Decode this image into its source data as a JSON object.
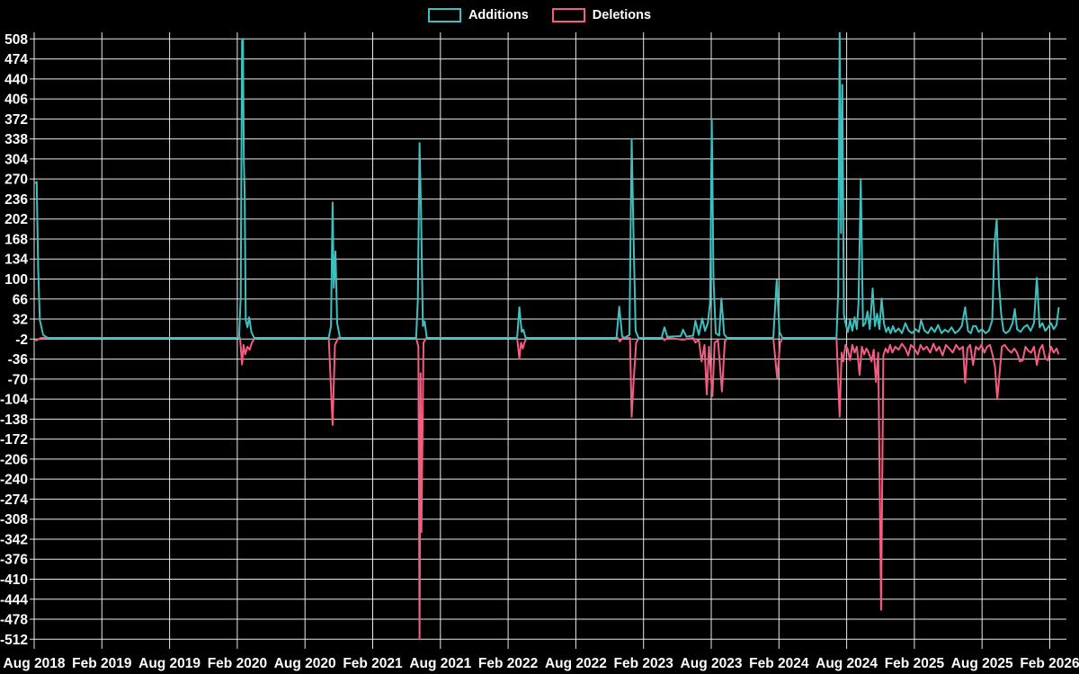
{
  "chart_data": {
    "type": "line",
    "title": "",
    "background": "#000000",
    "grid_color": "#e9e9e9",
    "text_color": "#ffffff",
    "legend_position": "top-center",
    "x_axis": {
      "unit": "months since Aug 2018",
      "months_per_gridline": 6,
      "tick_labels": [
        "Aug 2018",
        "Feb 2019",
        "Aug 2019",
        "Feb 2020",
        "Aug 2020",
        "Feb 2021",
        "Aug 2021",
        "Feb 2022",
        "Aug 2022",
        "Feb 2023",
        "Aug 2023",
        "Feb 2024",
        "Aug 2024",
        "Feb 2025",
        "Aug 2025",
        "Feb 2026"
      ]
    },
    "y_axis": {
      "max": 508,
      "min": -512,
      "step": 34,
      "tick_labels": [
        508,
        474,
        440,
        406,
        372,
        338,
        304,
        270,
        236,
        202,
        168,
        134,
        100,
        66,
        32,
        -2,
        -36,
        -70,
        -104,
        -138,
        -172,
        -206,
        -240,
        -274,
        -308,
        -342,
        -376,
        -410,
        -444,
        -478,
        -512
      ]
    },
    "series": [
      {
        "name": "Additions",
        "color": "#3fc0c0",
        "points": [
          [
            0.1,
            262
          ],
          [
            0.22,
            265
          ],
          [
            0.35,
            120
          ],
          [
            0.5,
            30
          ],
          [
            0.8,
            5
          ],
          [
            1.2,
            0
          ],
          [
            17.6,
            0
          ],
          [
            18.15,
            0
          ],
          [
            18.3,
            68
          ],
          [
            18.42,
            505
          ],
          [
            18.5,
            508
          ],
          [
            18.58,
            300
          ],
          [
            18.65,
            245
          ],
          [
            18.75,
            30
          ],
          [
            18.9,
            18
          ],
          [
            19.05,
            35
          ],
          [
            19.25,
            10
          ],
          [
            19.5,
            0
          ],
          [
            26.1,
            0
          ],
          [
            26.3,
            20
          ],
          [
            26.45,
            230
          ],
          [
            26.55,
            85
          ],
          [
            26.7,
            147
          ],
          [
            26.85,
            25
          ],
          [
            27.1,
            0
          ],
          [
            33.85,
            0
          ],
          [
            34.0,
            65
          ],
          [
            34.15,
            331
          ],
          [
            34.28,
            218
          ],
          [
            34.45,
            20
          ],
          [
            34.6,
            28
          ],
          [
            34.8,
            0
          ],
          [
            42.8,
            0
          ],
          [
            43.0,
            52
          ],
          [
            43.2,
            10
          ],
          [
            43.35,
            14
          ],
          [
            43.55,
            0
          ],
          [
            51.6,
            0
          ],
          [
            51.85,
            53
          ],
          [
            52.1,
            3
          ],
          [
            52.3,
            0
          ],
          [
            52.75,
            5
          ],
          [
            52.95,
            338
          ],
          [
            53.1,
            186
          ],
          [
            53.3,
            12
          ],
          [
            53.55,
            0
          ],
          [
            55.6,
            0
          ],
          [
            55.85,
            18
          ],
          [
            56.1,
            2
          ],
          [
            57.3,
            3
          ],
          [
            57.5,
            14
          ],
          [
            57.8,
            2
          ],
          [
            58.4,
            4
          ],
          [
            58.6,
            29
          ],
          [
            58.9,
            5
          ],
          [
            59.2,
            33
          ],
          [
            59.45,
            12
          ],
          [
            59.7,
            25
          ],
          [
            59.9,
            60
          ],
          [
            60.05,
            372
          ],
          [
            60.2,
            100
          ],
          [
            60.4,
            8
          ],
          [
            60.7,
            4
          ],
          [
            60.9,
            67
          ],
          [
            61.15,
            6
          ],
          [
            61.4,
            0
          ],
          [
            65.5,
            0
          ],
          [
            65.8,
            98
          ],
          [
            66.05,
            10
          ],
          [
            66.3,
            0
          ],
          [
            71.1,
            0
          ],
          [
            71.25,
            80
          ],
          [
            71.38,
            520
          ],
          [
            71.5,
            178
          ],
          [
            71.62,
            430
          ],
          [
            71.75,
            40
          ],
          [
            71.9,
            25
          ],
          [
            72.1,
            10
          ],
          [
            72.3,
            30
          ],
          [
            72.5,
            12
          ],
          [
            72.7,
            35
          ],
          [
            72.9,
            15
          ],
          [
            73.05,
            60
          ],
          [
            73.25,
            268
          ],
          [
            73.45,
            20
          ],
          [
            73.65,
            25
          ],
          [
            73.85,
            45
          ],
          [
            74.05,
            15
          ],
          [
            74.3,
            84
          ],
          [
            74.5,
            20
          ],
          [
            74.7,
            41
          ],
          [
            74.9,
            15
          ],
          [
            75.1,
            67
          ],
          [
            75.3,
            25
          ],
          [
            75.5,
            10
          ],
          [
            75.7,
            18
          ],
          [
            75.9,
            8
          ],
          [
            76.1,
            20
          ],
          [
            76.3,
            10
          ],
          [
            76.6,
            16
          ],
          [
            76.9,
            8
          ],
          [
            77.2,
            25
          ],
          [
            77.5,
            12
          ],
          [
            77.8,
            8
          ],
          [
            78.1,
            15
          ],
          [
            78.4,
            10
          ],
          [
            78.6,
            30
          ],
          [
            78.9,
            12
          ],
          [
            79.2,
            8
          ],
          [
            79.5,
            18
          ],
          [
            79.8,
            10
          ],
          [
            80.1,
            22
          ],
          [
            80.4,
            8
          ],
          [
            80.7,
            14
          ],
          [
            81.0,
            10
          ],
          [
            81.3,
            18
          ],
          [
            81.6,
            8
          ],
          [
            81.9,
            12
          ],
          [
            82.2,
            20
          ],
          [
            82.5,
            52
          ],
          [
            82.75,
            12
          ],
          [
            83.0,
            8
          ],
          [
            83.2,
            20
          ],
          [
            83.45,
            20
          ],
          [
            83.7,
            10
          ],
          [
            84.0,
            15
          ],
          [
            84.3,
            8
          ],
          [
            84.6,
            12
          ],
          [
            84.9,
            30
          ],
          [
            85.1,
            160
          ],
          [
            85.3,
            201
          ],
          [
            85.5,
            90
          ],
          [
            85.7,
            40
          ],
          [
            85.9,
            12
          ],
          [
            86.1,
            8
          ],
          [
            86.4,
            12
          ],
          [
            86.7,
            25
          ],
          [
            86.9,
            49
          ],
          [
            87.1,
            15
          ],
          [
            87.4,
            10
          ],
          [
            87.7,
            18
          ],
          [
            88.0,
            22
          ],
          [
            88.3,
            12
          ],
          [
            88.6,
            25
          ],
          [
            88.85,
            102
          ],
          [
            89.1,
            18
          ],
          [
            89.35,
            25
          ],
          [
            89.6,
            12
          ],
          [
            89.85,
            18
          ],
          [
            90.1,
            25
          ],
          [
            90.35,
            15
          ],
          [
            90.6,
            22
          ],
          [
            90.8,
            52
          ]
        ]
      },
      {
        "name": "Deletions",
        "color": "#f45c80",
        "points": [
          [
            0.1,
            -5
          ],
          [
            0.3,
            -3
          ],
          [
            0.6,
            0
          ],
          [
            17.6,
            0
          ],
          [
            18.25,
            0
          ],
          [
            18.42,
            -45
          ],
          [
            18.55,
            -12
          ],
          [
            18.7,
            -28
          ],
          [
            18.9,
            -15
          ],
          [
            19.1,
            -20
          ],
          [
            19.3,
            -8
          ],
          [
            19.55,
            0
          ],
          [
            26.1,
            0
          ],
          [
            26.45,
            -148
          ],
          [
            26.65,
            -12
          ],
          [
            26.95,
            0
          ],
          [
            33.85,
            0
          ],
          [
            34.05,
            -15
          ],
          [
            34.15,
            -512
          ],
          [
            34.25,
            -60
          ],
          [
            34.32,
            -330
          ],
          [
            34.5,
            -8
          ],
          [
            34.75,
            0
          ],
          [
            42.8,
            0
          ],
          [
            43.0,
            -35
          ],
          [
            43.15,
            -8
          ],
          [
            43.3,
            -18
          ],
          [
            43.5,
            -5
          ],
          [
            43.7,
            0
          ],
          [
            51.7,
            0
          ],
          [
            51.9,
            -6
          ],
          [
            52.15,
            0
          ],
          [
            52.8,
            0
          ],
          [
            52.95,
            -134
          ],
          [
            53.12,
            -73
          ],
          [
            53.35,
            -8
          ],
          [
            53.6,
            0
          ],
          [
            55.7,
            0
          ],
          [
            55.85,
            -4
          ],
          [
            56.1,
            0
          ],
          [
            57.5,
            -3
          ],
          [
            58.4,
            0
          ],
          [
            58.6,
            -8
          ],
          [
            58.9,
            -3
          ],
          [
            59.15,
            -40
          ],
          [
            59.4,
            -12
          ],
          [
            59.6,
            -96
          ],
          [
            59.8,
            -15
          ],
          [
            60.1,
            -99
          ],
          [
            60.3,
            -8
          ],
          [
            60.6,
            -4
          ],
          [
            60.95,
            -91
          ],
          [
            61.2,
            -6
          ],
          [
            61.45,
            0
          ],
          [
            65.5,
            0
          ],
          [
            65.85,
            -69
          ],
          [
            66.1,
            -8
          ],
          [
            66.35,
            0
          ],
          [
            71.1,
            0
          ],
          [
            71.38,
            -134
          ],
          [
            71.55,
            -25
          ],
          [
            71.7,
            -40
          ],
          [
            71.9,
            -12
          ],
          [
            72.1,
            -20
          ],
          [
            72.3,
            -38
          ],
          [
            72.5,
            -12
          ],
          [
            72.7,
            -25
          ],
          [
            72.9,
            -15
          ],
          [
            73.15,
            -63
          ],
          [
            73.35,
            -15
          ],
          [
            73.55,
            -28
          ],
          [
            73.75,
            -18
          ],
          [
            73.95,
            -25
          ],
          [
            74.2,
            -40
          ],
          [
            74.4,
            -20
          ],
          [
            74.6,
            -75
          ],
          [
            74.8,
            -25
          ],
          [
            75.05,
            -462
          ],
          [
            75.25,
            -30
          ],
          [
            75.45,
            -18
          ],
          [
            75.65,
            -25
          ],
          [
            75.85,
            -12
          ],
          [
            76.05,
            -25
          ],
          [
            76.3,
            -15
          ],
          [
            76.6,
            -20
          ],
          [
            76.9,
            -10
          ],
          [
            77.2,
            -18
          ],
          [
            77.45,
            -30
          ],
          [
            77.7,
            -12
          ],
          [
            78.0,
            -18
          ],
          [
            78.3,
            -28
          ],
          [
            78.55,
            -12
          ],
          [
            78.8,
            -20
          ],
          [
            79.1,
            -15
          ],
          [
            79.4,
            -25
          ],
          [
            79.7,
            -10
          ],
          [
            79.95,
            -22
          ],
          [
            80.2,
            -15
          ],
          [
            80.5,
            -30
          ],
          [
            80.8,
            -12
          ],
          [
            81.1,
            -18
          ],
          [
            81.4,
            -25
          ],
          [
            81.7,
            -12
          ],
          [
            82.0,
            -20
          ],
          [
            82.3,
            -15
          ],
          [
            82.5,
            -76
          ],
          [
            82.7,
            -18
          ],
          [
            82.95,
            -12
          ],
          [
            83.2,
            -46
          ],
          [
            83.45,
            -15
          ],
          [
            83.7,
            -20
          ],
          [
            83.95,
            -12
          ],
          [
            84.2,
            -25
          ],
          [
            84.45,
            -15
          ],
          [
            84.7,
            -12
          ],
          [
            84.95,
            -30
          ],
          [
            85.15,
            -50
          ],
          [
            85.35,
            -104
          ],
          [
            85.55,
            -60
          ],
          [
            85.75,
            -15
          ],
          [
            86.0,
            -12
          ],
          [
            86.3,
            -20
          ],
          [
            86.6,
            -25
          ],
          [
            86.85,
            -18
          ],
          [
            87.1,
            -25
          ],
          [
            87.35,
            -40
          ],
          [
            87.6,
            -38
          ],
          [
            87.85,
            -15
          ],
          [
            88.1,
            -22
          ],
          [
            88.35,
            -25
          ],
          [
            88.6,
            -15
          ],
          [
            88.85,
            -46
          ],
          [
            89.1,
            -20
          ],
          [
            89.35,
            -12
          ],
          [
            89.6,
            -35
          ],
          [
            89.85,
            -38
          ],
          [
            90.1,
            -15
          ],
          [
            90.35,
            -25
          ],
          [
            90.6,
            -18
          ],
          [
            90.8,
            -28
          ]
        ]
      }
    ]
  }
}
